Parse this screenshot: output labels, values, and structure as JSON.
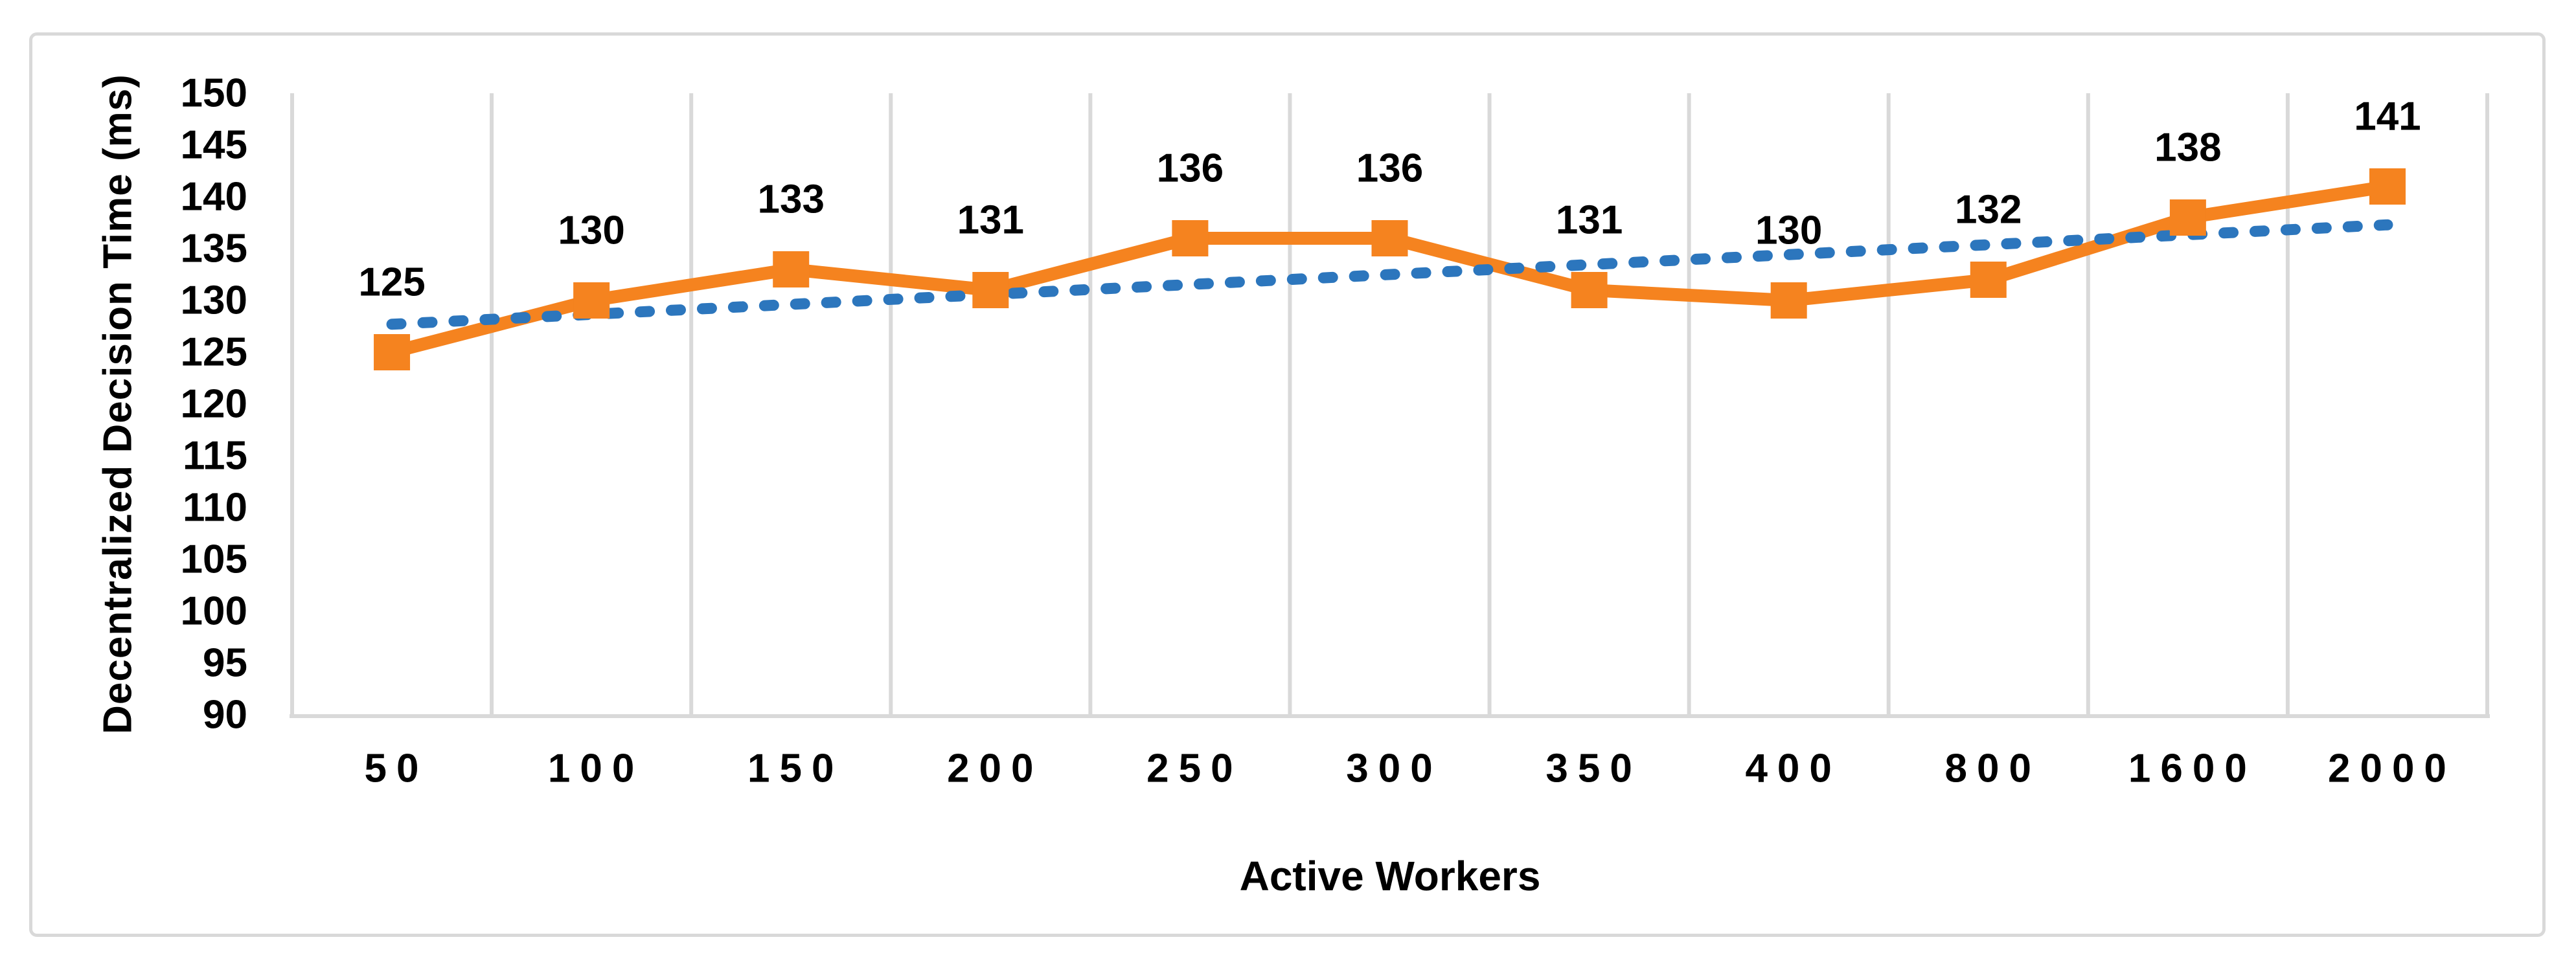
{
  "chart_data": {
    "type": "line",
    "title": "",
    "xlabel": "Active Workers",
    "ylabel": "Decentralized Decision Time (ms)",
    "categories": [
      "50",
      "100",
      "150",
      "200",
      "250",
      "300",
      "350",
      "400",
      "800",
      "1600",
      "2000"
    ],
    "series": [
      {
        "name": "Decentralized Decision Time (ms)",
        "values": [
          125,
          130,
          133,
          131,
          136,
          136,
          131,
          130,
          132,
          138,
          141
        ],
        "color": "#F5831F",
        "marker": "square",
        "data_labels": [
          125,
          130,
          133,
          131,
          136,
          136,
          131,
          130,
          132,
          138,
          141
        ]
      }
    ],
    "trendline": {
      "type": "linear",
      "style": "dashed",
      "color": "#2C76BD",
      "start_value": 127.7,
      "end_value": 137.3
    },
    "ylim": [
      90,
      150
    ],
    "ytick_step": 5,
    "yticks": [
      150,
      145,
      140,
      135,
      130,
      125,
      120,
      115,
      110,
      105,
      100,
      95,
      90
    ],
    "grid": "vertical",
    "legend_position": "none"
  },
  "colors": {
    "series_orange": "#F5831F",
    "trend_blue": "#2C76BD",
    "gridline": "#D9D9D9",
    "axis_line": "#D9D9D9",
    "frame_border": "#D9D9D9",
    "text": "#000000",
    "background": "#FFFFFF"
  }
}
